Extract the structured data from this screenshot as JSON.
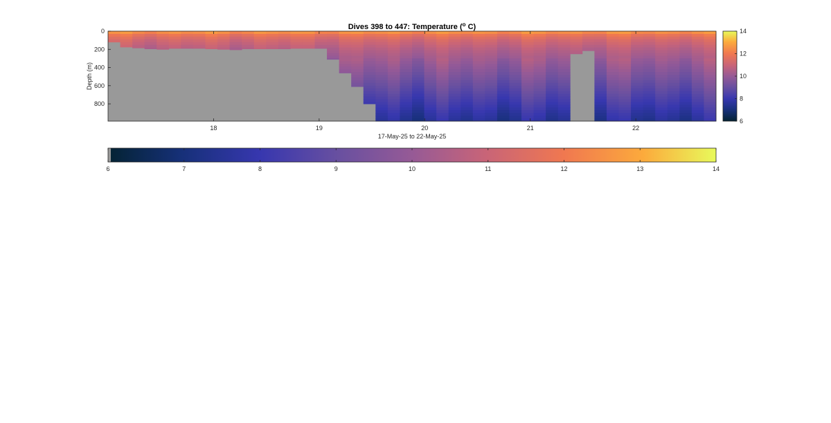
{
  "chart_data": [
    {
      "type": "heatmap",
      "title_main": "Dives 398 to 447: Temperature (",
      "title_sup": "o",
      "title_end": " C)",
      "xlabel": "17-May-25 to 22-May-25",
      "ylabel": "Depth (m)",
      "x_range": [
        17.0,
        22.76
      ],
      "y_range": [
        0,
        990
      ],
      "y_reversed": true,
      "x_ticks": [
        18,
        19,
        20,
        21,
        22
      ],
      "x_tick_labels": [
        "18",
        "19",
        "20",
        "21",
        "22"
      ],
      "y_ticks": [
        0,
        200,
        400,
        600,
        800
      ],
      "y_tick_labels": [
        "0",
        "200",
        "400",
        "600",
        "800"
      ],
      "color_range": [
        6,
        14
      ],
      "colormap": "thermal",
      "no_data_color": "#999999",
      "dive_count": 50,
      "dive_first": 398,
      "dive_last": 447,
      "max_depth_per_dive_m": [
        120,
        175,
        185,
        195,
        200,
        190,
        190,
        190,
        195,
        200,
        205,
        195,
        195,
        195,
        195,
        190,
        190,
        190,
        310,
        460,
        610,
        800,
        990,
        990,
        990,
        990,
        990,
        990,
        990,
        990,
        990,
        990,
        990,
        990,
        990,
        990,
        990,
        990,
        250,
        215,
        990,
        990,
        990,
        990,
        990,
        990,
        990,
        990,
        990,
        990
      ],
      "temperature_profile": {
        "depth_m": [
          0,
          10,
          30,
          60,
          100,
          150,
          200,
          300,
          400,
          500,
          600,
          700,
          800,
          900,
          990
        ],
        "temp_C": [
          13.0,
          12.6,
          12.0,
          11.6,
          11.2,
          10.9,
          10.6,
          10.2,
          9.8,
          9.4,
          9.0,
          8.6,
          8.2,
          7.8,
          7.5
        ]
      }
    },
    {
      "type": "colorbar",
      "orientation": "vertical",
      "range": [
        6,
        14
      ],
      "ticks": [
        6,
        8,
        10,
        12,
        14
      ],
      "tick_labels": [
        "6",
        "8",
        "10",
        "12",
        "14"
      ]
    },
    {
      "type": "colorbar",
      "orientation": "horizontal",
      "range": [
        6,
        14
      ],
      "ticks": [
        6,
        7,
        8,
        9,
        10,
        11,
        12,
        13,
        14
      ],
      "tick_labels": [
        "6",
        "7",
        "8",
        "9",
        "10",
        "11",
        "12",
        "13",
        "14"
      ]
    }
  ]
}
